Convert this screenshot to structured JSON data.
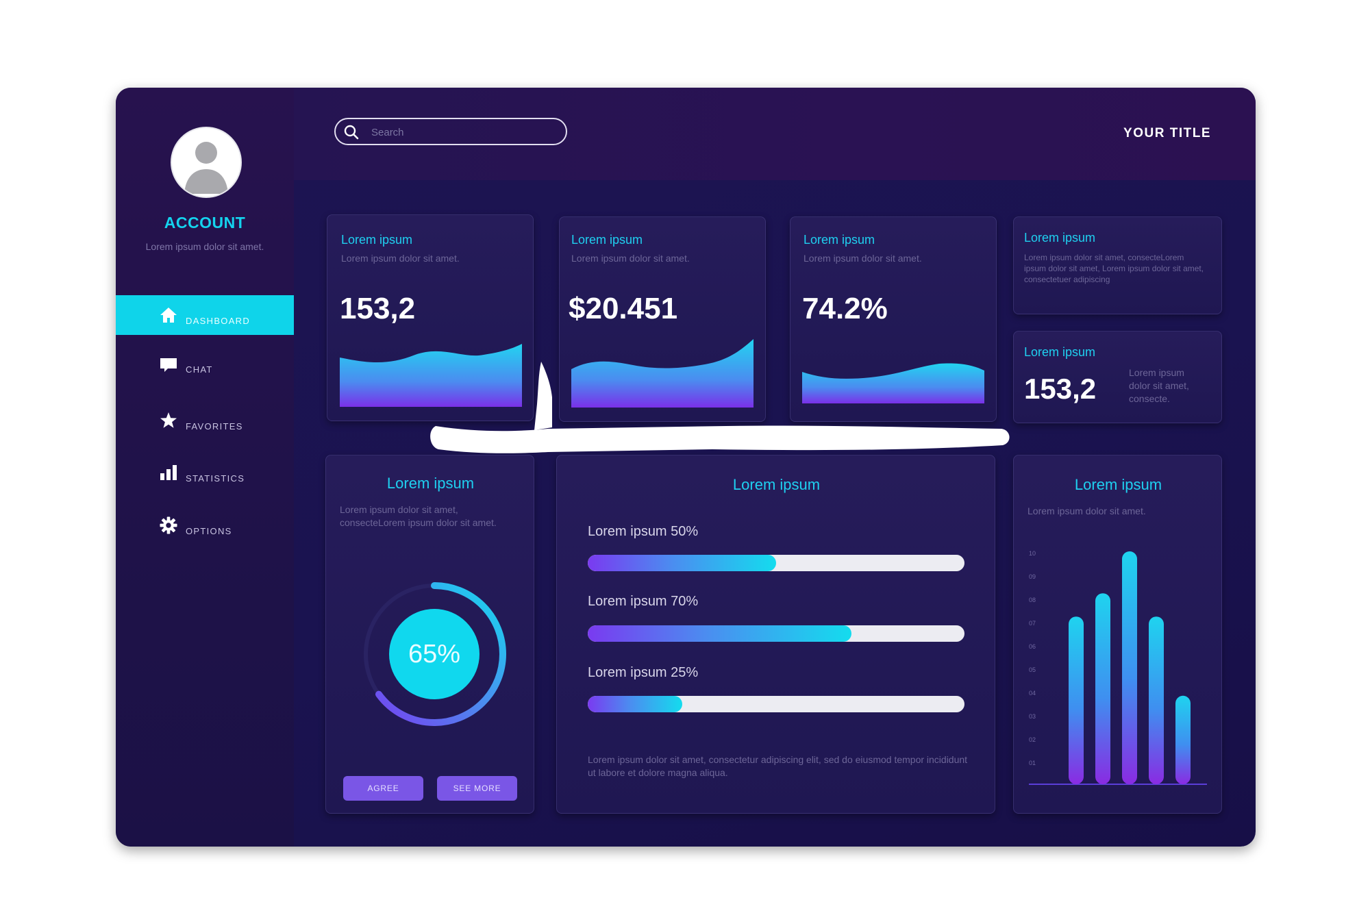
{
  "sidebar": {
    "account_title": "ACCOUNT",
    "account_subtitle": "Lorem ipsum dolor sit amet.",
    "items": [
      {
        "label": "DASHBOARD",
        "icon": "home-icon",
        "active": true
      },
      {
        "label": "CHAT",
        "icon": "chat-icon",
        "active": false
      },
      {
        "label": "FAVORITES",
        "icon": "star-icon",
        "active": false
      },
      {
        "label": "STATISTICS",
        "icon": "bar-chart-icon",
        "active": false
      },
      {
        "label": "OPTIONS",
        "icon": "gear-icon",
        "active": false
      }
    ]
  },
  "header": {
    "search_placeholder": "Search",
    "title": "YOUR TITLE"
  },
  "stat_cards": [
    {
      "title": "Lorem ipsum",
      "subtitle": "Lorem ipsum dolor sit amet.",
      "value": "153,2"
    },
    {
      "title": "Lorem ipsum",
      "subtitle": "Lorem ipsum dolor sit amet.",
      "value": "$20.451"
    },
    {
      "title": "Lorem ipsum",
      "subtitle": "Lorem ipsum dolor sit amet.",
      "value": "74.2%"
    }
  ],
  "info_card": {
    "title": "Lorem ipsum",
    "text": "Lorem ipsum dolor sit amet, consecteLorem ipsum dolor sit amet, Lorem ipsum dolor sit amet, consectetuer adipiscing"
  },
  "mini_card": {
    "title": "Lorem ipsum",
    "value": "153,2",
    "text": "Lorem ipsum dolor sit amet, consecte."
  },
  "donut_card": {
    "title": "Lorem ipsum",
    "text": "Lorem ipsum dolor sit amet, consecteLorem ipsum dolor sit amet.",
    "value_label": "65%",
    "value": 0.65,
    "agree_label": "AGREE",
    "see_more_label": "SEE MORE"
  },
  "progress_card": {
    "title": "Lorem ipsum",
    "bars": [
      {
        "label": "Lorem ipsum 50%",
        "value": 0.5
      },
      {
        "label": "Lorem ipsum 70%",
        "value": 0.7
      },
      {
        "label": "Lorem ipsum 25%",
        "value": 0.25
      }
    ],
    "footer": "Lorem ipsum dolor sit amet, consectetur adipiscing elit, sed do eiusmod tempor incididunt ut labore et dolore magna aliqua."
  },
  "chart_card": {
    "title": "Lorem ipsum",
    "subtitle": "Lorem ipsum dolor sit amet."
  },
  "chart_data": {
    "type": "bar",
    "title": "Lorem ipsum",
    "y_ticks": [
      "01",
      "02",
      "03",
      "04",
      "05",
      "06",
      "07",
      "08",
      "09",
      "10"
    ],
    "ylim": [
      0,
      10
    ],
    "values": [
      7.2,
      8.2,
      10,
      7.2,
      3.8
    ],
    "grid": false,
    "colors": [
      "#8a2be2",
      "#1fd3ef"
    ]
  }
}
